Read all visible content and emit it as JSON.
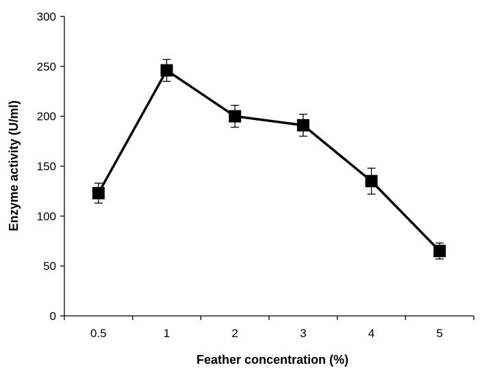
{
  "chart_data": {
    "type": "line",
    "title": "",
    "xlabel": "Feather concentration (%)",
    "ylabel": "Enzyme activity (U/ml)",
    "categories": [
      "0.5",
      "1",
      "2",
      "3",
      "4",
      "5"
    ],
    "series": [
      {
        "values": [
          123,
          246,
          200,
          191,
          135,
          65
        ],
        "error": [
          10,
          11,
          11,
          11,
          13,
          8
        ]
      }
    ],
    "ylim": [
      0,
      300
    ],
    "yticks": [
      0,
      50,
      100,
      150,
      200,
      250,
      300
    ],
    "ytick_labels": [
      "0",
      "50",
      "100",
      "150",
      "200",
      "250",
      "300"
    ],
    "grid": false,
    "legend": "none",
    "marker": "square",
    "colors": {
      "series": "#000000",
      "axis": "#000000"
    }
  }
}
